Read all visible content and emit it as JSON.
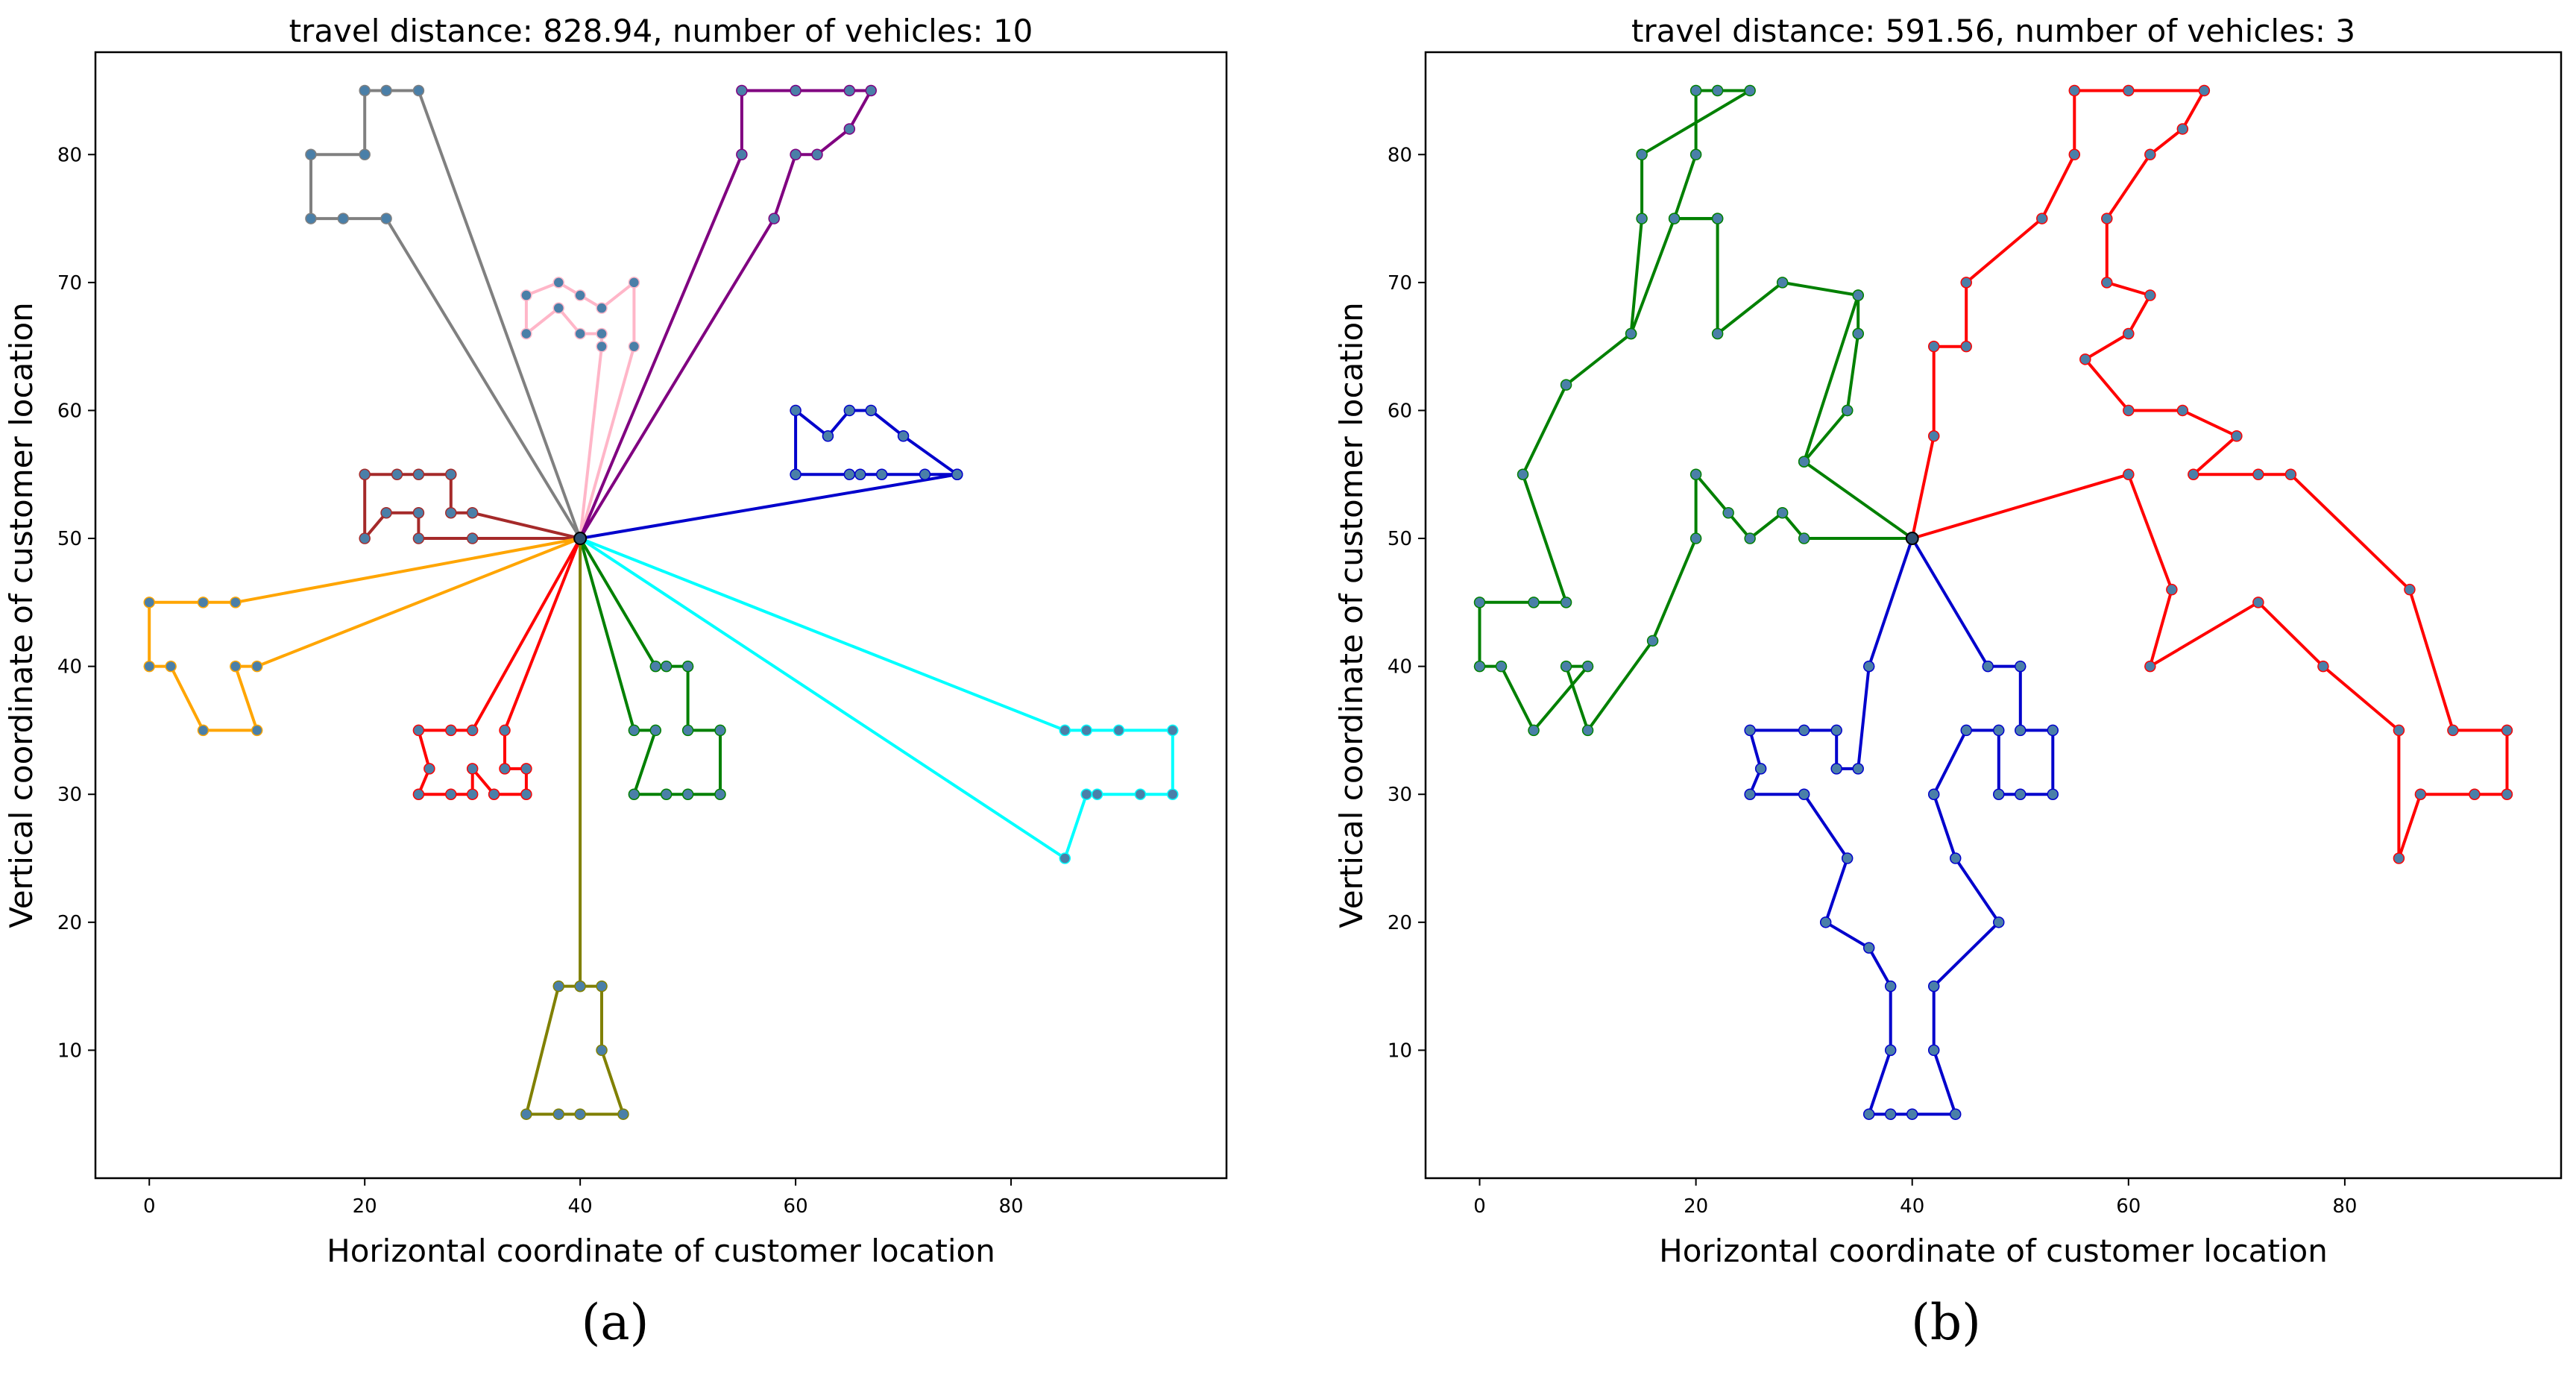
{
  "chart_data": [
    {
      "type": "line",
      "panel": "a",
      "title": "travel distance: 828.94, number of vehicles: 10",
      "xlabel": "Horizontal coordinate of customer location",
      "ylabel": "Vertical coordinate of customer location",
      "xlim": [
        -5,
        100
      ],
      "ylim": [
        0,
        88
      ],
      "xticks": [
        0,
        20,
        40,
        60,
        80
      ],
      "yticks": [
        10,
        20,
        30,
        40,
        50,
        60,
        70,
        80
      ],
      "depot": [
        40,
        50
      ],
      "series": [
        {
          "name": "route-1",
          "color": "#808080",
          "points": [
            [
              40,
              50
            ],
            [
              25,
              85
            ],
            [
              22,
              85
            ],
            [
              20,
              85
            ],
            [
              20,
              80
            ],
            [
              15,
              80
            ],
            [
              15,
              75
            ],
            [
              18,
              75
            ],
            [
              22,
              75
            ],
            [
              40,
              50
            ]
          ]
        },
        {
          "name": "route-2",
          "color": "#ffb6c8",
          "points": [
            [
              40,
              50
            ],
            [
              45,
              65
            ],
            [
              45,
              70
            ],
            [
              42,
              68
            ],
            [
              40,
              69
            ],
            [
              38,
              70
            ],
            [
              35,
              69
            ],
            [
              35,
              66
            ],
            [
              38,
              68
            ],
            [
              40,
              66
            ],
            [
              42,
              66
            ],
            [
              42,
              65
            ],
            [
              40,
              50
            ]
          ]
        },
        {
          "name": "route-3",
          "color": "#800080",
          "points": [
            [
              40,
              50
            ],
            [
              55,
              80
            ],
            [
              55,
              85
            ],
            [
              60,
              85
            ],
            [
              65,
              85
            ],
            [
              67,
              85
            ],
            [
              65,
              82
            ],
            [
              62,
              80
            ],
            [
              60,
              80
            ],
            [
              58,
              75
            ],
            [
              40,
              50
            ]
          ]
        },
        {
          "name": "route-4",
          "color": "#0000cc",
          "points": [
            [
              40,
              50
            ],
            [
              75,
              55
            ],
            [
              72,
              55
            ],
            [
              68,
              55
            ],
            [
              66,
              55
            ],
            [
              65,
              55
            ],
            [
              60,
              55
            ],
            [
              60,
              60
            ],
            [
              63,
              58
            ],
            [
              65,
              60
            ],
            [
              67,
              60
            ],
            [
              70,
              58
            ],
            [
              75,
              55
            ]
          ]
        },
        {
          "name": "route-5",
          "color": "#a52a2a",
          "points": [
            [
              40,
              50
            ],
            [
              30,
              52
            ],
            [
              28,
              52
            ],
            [
              28,
              55
            ],
            [
              25,
              55
            ],
            [
              23,
              55
            ],
            [
              20,
              55
            ],
            [
              20,
              50
            ],
            [
              22,
              52
            ],
            [
              25,
              52
            ],
            [
              25,
              50
            ],
            [
              30,
              50
            ],
            [
              40,
              50
            ]
          ]
        },
        {
          "name": "route-6",
          "color": "#ffa500",
          "points": [
            [
              40,
              50
            ],
            [
              8,
              45
            ],
            [
              5,
              45
            ],
            [
              0,
              45
            ],
            [
              0,
              40
            ],
            [
              2,
              40
            ],
            [
              5,
              35
            ],
            [
              10,
              35
            ],
            [
              8,
              40
            ],
            [
              10,
              40
            ],
            [
              40,
              50
            ]
          ]
        },
        {
          "name": "route-7",
          "color": "#ff0000",
          "points": [
            [
              40,
              50
            ],
            [
              33,
              35
            ],
            [
              33,
              32
            ],
            [
              35,
              32
            ],
            [
              35,
              30
            ],
            [
              32,
              30
            ],
            [
              30,
              32
            ],
            [
              30,
              30
            ],
            [
              28,
              30
            ],
            [
              25,
              30
            ],
            [
              26,
              32
            ],
            [
              25,
              35
            ],
            [
              28,
              35
            ],
            [
              30,
              35
            ],
            [
              40,
              50
            ]
          ]
        },
        {
          "name": "route-8",
          "color": "#008000",
          "points": [
            [
              40,
              50
            ],
            [
              47,
              40
            ],
            [
              48,
              40
            ],
            [
              50,
              40
            ],
            [
              50,
              35
            ],
            [
              53,
              35
            ],
            [
              53,
              30
            ],
            [
              50,
              30
            ],
            [
              48,
              30
            ],
            [
              45,
              30
            ],
            [
              47,
              35
            ],
            [
              45,
              35
            ],
            [
              40,
              50
            ]
          ]
        },
        {
          "name": "route-9",
          "color": "#00ffff",
          "points": [
            [
              40,
              50
            ],
            [
              85,
              35
            ],
            [
              87,
              35
            ],
            [
              90,
              35
            ],
            [
              95,
              35
            ],
            [
              95,
              30
            ],
            [
              92,
              30
            ],
            [
              88,
              30
            ],
            [
              87,
              30
            ],
            [
              85,
              25
            ],
            [
              40,
              50
            ]
          ]
        },
        {
          "name": "route-10",
          "color": "#808000",
          "points": [
            [
              40,
              50
            ],
            [
              40,
              15
            ],
            [
              42,
              15
            ],
            [
              42,
              10
            ],
            [
              44,
              5
            ],
            [
              40,
              5
            ],
            [
              38,
              5
            ],
            [
              35,
              5
            ],
            [
              38,
              15
            ],
            [
              40,
              15
            ],
            [
              40,
              50
            ]
          ]
        }
      ]
    },
    {
      "type": "line",
      "panel": "b",
      "title": "travel distance: 591.56, number of vehicles: 3",
      "xlabel": "Horizontal coordinate of customer location",
      "ylabel": "Vertical coordinate of customer location",
      "xlim": [
        -5,
        100
      ],
      "ylim": [
        0,
        88
      ],
      "xticks": [
        0,
        20,
        40,
        60,
        80
      ],
      "yticks": [
        10,
        20,
        30,
        40,
        50,
        60,
        70,
        80
      ],
      "depot": [
        40,
        50
      ],
      "series": [
        {
          "name": "route-green",
          "color": "#008000",
          "points": [
            [
              40,
              50
            ],
            [
              30,
              50
            ],
            [
              28,
              52
            ],
            [
              25,
              50
            ],
            [
              23,
              52
            ],
            [
              20,
              55
            ],
            [
              20,
              50
            ],
            [
              16,
              42
            ],
            [
              10,
              35
            ],
            [
              8,
              40
            ],
            [
              10,
              40
            ],
            [
              5,
              35
            ],
            [
              2,
              40
            ],
            [
              0,
              40
            ],
            [
              0,
              45
            ],
            [
              5,
              45
            ],
            [
              8,
              45
            ],
            [
              4,
              55
            ],
            [
              8,
              62
            ],
            [
              14,
              66
            ],
            [
              18,
              75
            ],
            [
              22,
              75
            ],
            [
              22,
              66
            ],
            [
              28,
              70
            ],
            [
              35,
              69
            ],
            [
              35,
              66
            ],
            [
              34,
              60
            ],
            [
              30,
              56
            ],
            [
              35,
              69
            ],
            [
              35,
              66
            ],
            [
              34,
              60
            ],
            [
              30,
              56
            ],
            [
              40,
              50
            ]
          ]
        },
        {
          "name": "route-green-top",
          "color": "#008000",
          "points": [
            [
              22,
              75
            ],
            [
              18,
              75
            ],
            [
              20,
              80
            ],
            [
              20,
              85
            ],
            [
              22,
              85
            ],
            [
              25,
              85
            ],
            [
              15,
              80
            ],
            [
              15,
              75
            ],
            [
              14,
              66
            ]
          ]
        },
        {
          "name": "route-red",
          "color": "#ff0000",
          "points": [
            [
              40,
              50
            ],
            [
              42,
              58
            ],
            [
              42,
              65
            ],
            [
              45,
              65
            ],
            [
              45,
              70
            ],
            [
              52,
              75
            ],
            [
              55,
              80
            ],
            [
              55,
              85
            ],
            [
              60,
              85
            ],
            [
              67,
              85
            ],
            [
              65,
              82
            ],
            [
              62,
              80
            ],
            [
              58,
              75
            ],
            [
              58,
              70
            ],
            [
              62,
              69
            ],
            [
              60,
              66
            ],
            [
              56,
              64
            ],
            [
              60,
              60
            ],
            [
              65,
              60
            ],
            [
              70,
              58
            ],
            [
              66,
              55
            ],
            [
              72,
              55
            ],
            [
              75,
              55
            ],
            [
              86,
              46
            ],
            [
              90,
              35
            ],
            [
              95,
              35
            ],
            [
              95,
              30
            ],
            [
              92,
              30
            ],
            [
              87,
              30
            ],
            [
              85,
              25
            ],
            [
              85,
              35
            ],
            [
              78,
              40
            ],
            [
              72,
              45
            ],
            [
              62,
              40
            ],
            [
              64,
              46
            ],
            [
              60,
              55
            ],
            [
              40,
              50
            ]
          ]
        },
        {
          "name": "route-blue",
          "color": "#0000cc",
          "points": [
            [
              40,
              50
            ],
            [
              47,
              40
            ],
            [
              50,
              40
            ],
            [
              50,
              35
            ],
            [
              53,
              35
            ],
            [
              53,
              30
            ],
            [
              50,
              30
            ],
            [
              48,
              30
            ],
            [
              48,
              35
            ],
            [
              45,
              35
            ],
            [
              42,
              30
            ],
            [
              44,
              25
            ],
            [
              48,
              20
            ],
            [
              42,
              15
            ],
            [
              42,
              10
            ],
            [
              44,
              5
            ],
            [
              40,
              5
            ],
            [
              38,
              5
            ],
            [
              36,
              5
            ],
            [
              38,
              10
            ],
            [
              38,
              15
            ],
            [
              36,
              18
            ],
            [
              32,
              20
            ],
            [
              34,
              25
            ],
            [
              30,
              30
            ],
            [
              25,
              30
            ],
            [
              26,
              32
            ],
            [
              25,
              35
            ],
            [
              30,
              35
            ],
            [
              33,
              35
            ],
            [
              33,
              32
            ],
            [
              35,
              32
            ],
            [
              36,
              40
            ],
            [
              40,
              50
            ]
          ]
        }
      ]
    }
  ],
  "captions": {
    "a": "(a)",
    "b": "(b)"
  },
  "colors": {
    "marker": "#4a7fa8",
    "axis": "#000000"
  }
}
